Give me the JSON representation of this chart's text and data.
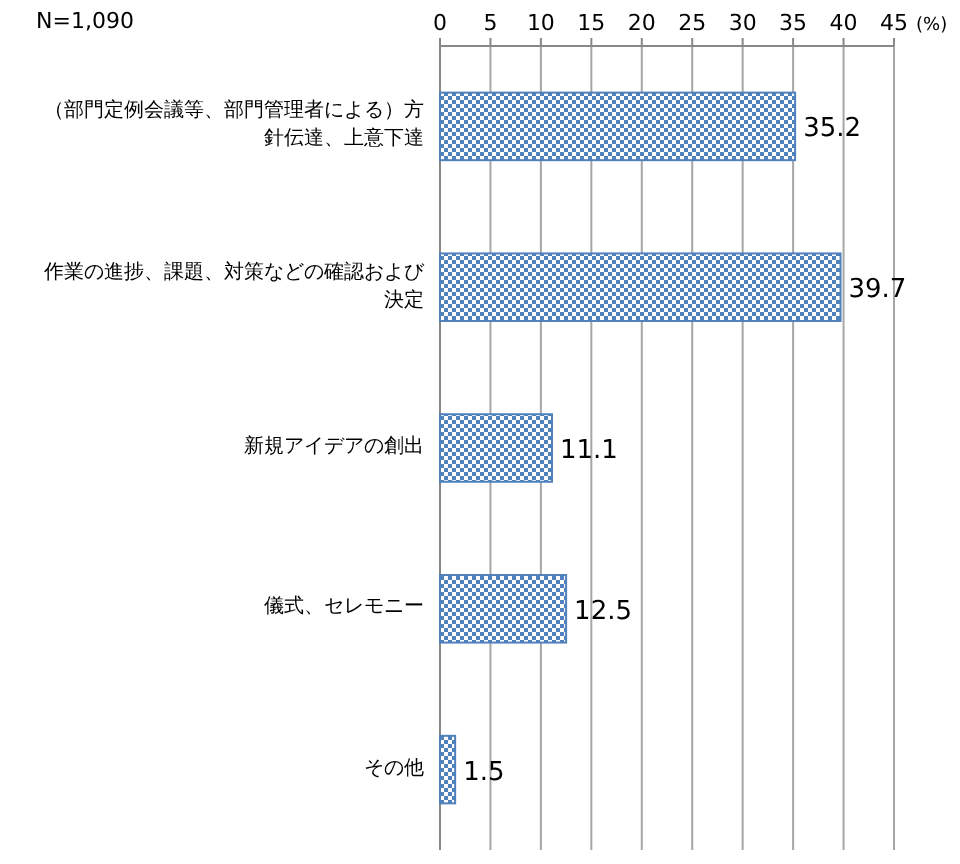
{
  "chart_data": {
    "type": "bar",
    "orientation": "horizontal",
    "xlabel": "(%)",
    "annotations": [
      "N=1,090"
    ],
    "categories": [
      "（部門定例会議等、部門管理者による）方針伝達、上意下達",
      "作業の進捗、課題、対策などの確認および決定",
      "新規アイデアの創出",
      "儀式、セレモニー",
      "その他"
    ],
    "values": [
      35.2,
      39.7,
      11.1,
      12.5,
      1.5
    ],
    "color": "#4f81bd",
    "data_labels": true,
    "grid": "x",
    "xlim": [
      0,
      45
    ],
    "xticks": [
      0,
      5,
      10,
      15,
      20,
      25,
      30,
      35,
      40,
      45
    ]
  }
}
